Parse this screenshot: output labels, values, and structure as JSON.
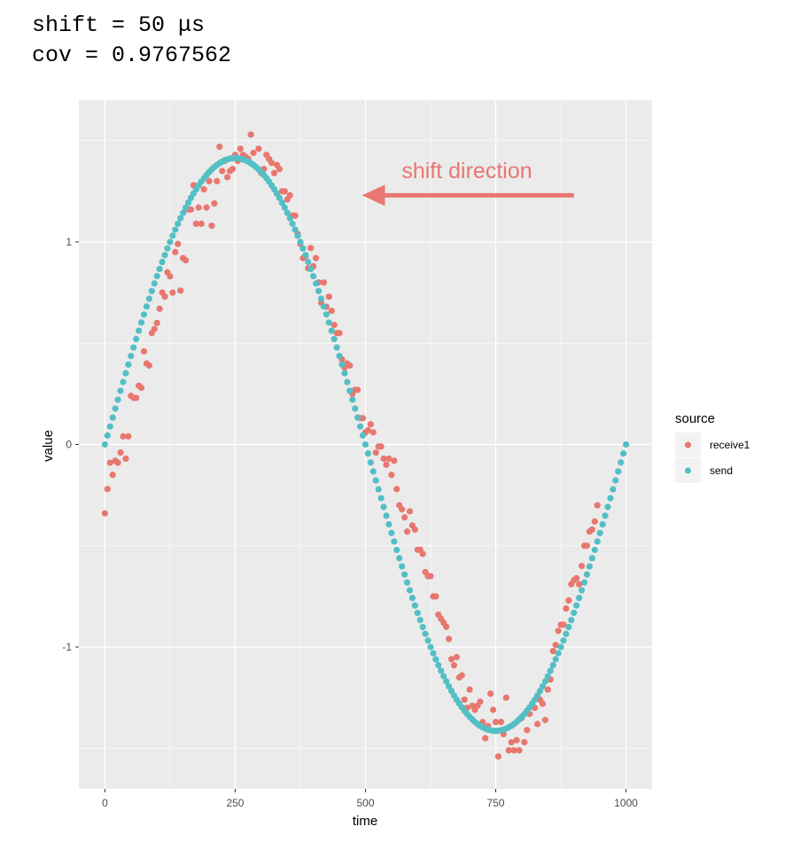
{
  "header": {
    "line1": "shift = 50 μs",
    "line2": "cov = 0.9767562"
  },
  "chart_data": {
    "type": "scatter",
    "title": "",
    "xlabel": "time",
    "ylabel": "value",
    "xlim": [
      -50,
      1050
    ],
    "ylim": [
      -1.7,
      1.7
    ],
    "x_ticks": [
      0,
      250,
      500,
      750,
      1000
    ],
    "y_ticks": [
      -1,
      0,
      1
    ],
    "x_tick_labels": [
      "0",
      "250",
      "500",
      "750",
      "1000"
    ],
    "y_tick_labels": [
      "-1",
      "0",
      "1"
    ],
    "grid": true,
    "legend": {
      "title": "source",
      "position": "right"
    },
    "annotation": {
      "text": "shift direction",
      "arrow_from_x": 900,
      "arrow_to_x": 500,
      "arrow_y": 1.23
    },
    "series": [
      {
        "name": "receive1",
        "color": "#E8776F",
        "points": [
          [
            0,
            -0.34
          ],
          [
            5,
            -0.22
          ],
          [
            10,
            -0.09
          ],
          [
            15,
            -0.15
          ],
          [
            20,
            -0.08
          ],
          [
            25,
            -0.09
          ],
          [
            30,
            -0.04
          ],
          [
            35,
            0.04
          ],
          [
            40,
            -0.07
          ],
          [
            45,
            0.04
          ],
          [
            50,
            0.24
          ],
          [
            55,
            0.23
          ],
          [
            60,
            0.23
          ],
          [
            65,
            0.29
          ],
          [
            70,
            0.28
          ],
          [
            75,
            0.46
          ],
          [
            80,
            0.4
          ],
          [
            85,
            0.39
          ],
          [
            90,
            0.55
          ],
          [
            95,
            0.57
          ],
          [
            100,
            0.6
          ],
          [
            105,
            0.67
          ],
          [
            110,
            0.75
          ],
          [
            115,
            0.73
          ],
          [
            120,
            0.85
          ],
          [
            125,
            0.83
          ],
          [
            130,
            0.75
          ],
          [
            135,
            0.95
          ],
          [
            140,
            0.99
          ],
          [
            145,
            0.76
          ],
          [
            150,
            0.92
          ],
          [
            155,
            0.91
          ],
          [
            160,
            1.16
          ],
          [
            165,
            1.16
          ],
          [
            170,
            1.28
          ],
          [
            175,
            1.09
          ],
          [
            180,
            1.17
          ],
          [
            185,
            1.09
          ],
          [
            190,
            1.26
          ],
          [
            195,
            1.17
          ],
          [
            200,
            1.3
          ],
          [
            205,
            1.08
          ],
          [
            210,
            1.19
          ],
          [
            215,
            1.3
          ],
          [
            220,
            1.47
          ],
          [
            225,
            1.35
          ],
          [
            230,
            1.4
          ],
          [
            235,
            1.32
          ],
          [
            240,
            1.35
          ],
          [
            245,
            1.36
          ],
          [
            250,
            1.43
          ],
          [
            255,
            1.4
          ],
          [
            260,
            1.46
          ],
          [
            265,
            1.43
          ],
          [
            270,
            1.42
          ],
          [
            275,
            1.41
          ],
          [
            280,
            1.53
          ],
          [
            285,
            1.44
          ],
          [
            290,
            1.37
          ],
          [
            295,
            1.46
          ],
          [
            300,
            1.34
          ],
          [
            305,
            1.36
          ],
          [
            310,
            1.43
          ],
          [
            315,
            1.41
          ],
          [
            320,
            1.39
          ],
          [
            325,
            1.34
          ],
          [
            330,
            1.38
          ],
          [
            335,
            1.36
          ],
          [
            340,
            1.25
          ],
          [
            345,
            1.25
          ],
          [
            350,
            1.21
          ],
          [
            355,
            1.23
          ],
          [
            360,
            1.13
          ],
          [
            365,
            1.13
          ],
          [
            370,
            1.04
          ],
          [
            375,
            0.99
          ],
          [
            380,
            0.92
          ],
          [
            385,
            0.93
          ],
          [
            390,
            0.87
          ],
          [
            395,
            0.97
          ],
          [
            400,
            0.88
          ],
          [
            405,
            0.92
          ],
          [
            410,
            0.8
          ],
          [
            415,
            0.7
          ],
          [
            420,
            0.8
          ],
          [
            425,
            0.68
          ],
          [
            430,
            0.73
          ],
          [
            435,
            0.66
          ],
          [
            440,
            0.59
          ],
          [
            445,
            0.55
          ],
          [
            450,
            0.55
          ],
          [
            455,
            0.42
          ],
          [
            460,
            0.38
          ],
          [
            465,
            0.4
          ],
          [
            470,
            0.39
          ],
          [
            475,
            0.25
          ],
          [
            480,
            0.27
          ],
          [
            485,
            0.27
          ],
          [
            490,
            0.13
          ],
          [
            495,
            0.13
          ],
          [
            500,
            0.06
          ],
          [
            505,
            0.07
          ],
          [
            510,
            0.1
          ],
          [
            515,
            0.06
          ],
          [
            520,
            -0.04
          ],
          [
            525,
            -0.01
          ],
          [
            530,
            -0.01
          ],
          [
            535,
            -0.07
          ],
          [
            540,
            -0.1
          ],
          [
            545,
            -0.07
          ],
          [
            550,
            -0.15
          ],
          [
            555,
            -0.08
          ],
          [
            560,
            -0.22
          ],
          [
            565,
            -0.3
          ],
          [
            570,
            -0.32
          ],
          [
            575,
            -0.36
          ],
          [
            580,
            -0.43
          ],
          [
            585,
            -0.33
          ],
          [
            590,
            -0.4
          ],
          [
            595,
            -0.42
          ],
          [
            600,
            -0.52
          ],
          [
            605,
            -0.52
          ],
          [
            610,
            -0.54
          ],
          [
            615,
            -0.63
          ],
          [
            620,
            -0.65
          ],
          [
            625,
            -0.65
          ],
          [
            630,
            -0.75
          ],
          [
            635,
            -0.75
          ],
          [
            640,
            -0.84
          ],
          [
            645,
            -0.86
          ],
          [
            650,
            -0.88
          ],
          [
            655,
            -0.9
          ],
          [
            660,
            -0.96
          ],
          [
            665,
            -1.06
          ],
          [
            670,
            -1.09
          ],
          [
            675,
            -1.05
          ],
          [
            680,
            -1.15
          ],
          [
            685,
            -1.14
          ],
          [
            690,
            -1.26
          ],
          [
            695,
            -1.3
          ],
          [
            700,
            -1.21
          ],
          [
            705,
            -1.29
          ],
          [
            710,
            -1.31
          ],
          [
            715,
            -1.29
          ],
          [
            720,
            -1.27
          ],
          [
            725,
            -1.37
          ],
          [
            730,
            -1.45
          ],
          [
            735,
            -1.39
          ],
          [
            740,
            -1.23
          ],
          [
            745,
            -1.31
          ],
          [
            750,
            -1.37
          ],
          [
            755,
            -1.54
          ],
          [
            760,
            -1.37
          ],
          [
            765,
            -1.43
          ],
          [
            770,
            -1.25
          ],
          [
            775,
            -1.51
          ],
          [
            780,
            -1.47
          ],
          [
            785,
            -1.51
          ],
          [
            790,
            -1.46
          ],
          [
            795,
            -1.51
          ],
          [
            800,
            -1.35
          ],
          [
            805,
            -1.47
          ],
          [
            810,
            -1.41
          ],
          [
            815,
            -1.33
          ],
          [
            820,
            -1.28
          ],
          [
            825,
            -1.3
          ],
          [
            830,
            -1.38
          ],
          [
            835,
            -1.26
          ],
          [
            840,
            -1.28
          ],
          [
            845,
            -1.36
          ],
          [
            850,
            -1.21
          ],
          [
            855,
            -1.16
          ],
          [
            860,
            -1.02
          ],
          [
            865,
            -0.99
          ],
          [
            870,
            -0.92
          ],
          [
            875,
            -0.89
          ],
          [
            880,
            -0.89
          ],
          [
            885,
            -0.81
          ],
          [
            890,
            -0.77
          ],
          [
            895,
            -0.69
          ],
          [
            900,
            -0.67
          ],
          [
            905,
            -0.66
          ],
          [
            910,
            -0.69
          ],
          [
            915,
            -0.6
          ],
          [
            920,
            -0.5
          ],
          [
            925,
            -0.5
          ],
          [
            930,
            -0.43
          ],
          [
            935,
            -0.42
          ],
          [
            940,
            -0.38
          ],
          [
            945,
            -0.3
          ]
        ]
      },
      {
        "name": "send",
        "color": "#53BFC5",
        "amplitude": 1.414,
        "period": 1000,
        "x_start": 0,
        "x_end": 1000,
        "x_step": 5
      }
    ]
  },
  "colors": {
    "panel_bg": "#EBEBEB",
    "grid": "#FFFFFF",
    "annotation": "#E8776F"
  }
}
